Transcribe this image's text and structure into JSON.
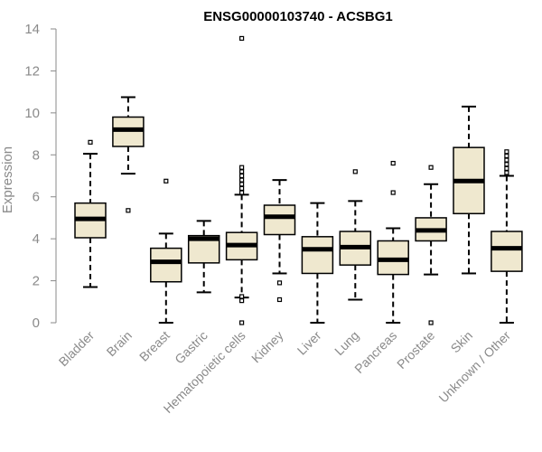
{
  "chart_data": {
    "type": "box",
    "title": "ENSG00000103740 - ACSBG1",
    "xlabel": "",
    "ylabel": "Expression",
    "ylim": [
      0,
      14
    ],
    "yticks": [
      0,
      2,
      4,
      6,
      8,
      10,
      12,
      14
    ],
    "grid": false,
    "box_fill": "#efe8cf",
    "line_color": "#000000",
    "axis_color": "#8a8a8a",
    "categories": [
      "Bladder",
      "Brain",
      "Breast",
      "Gastric",
      "Hematopoietic cells",
      "Kidney",
      "Liver",
      "Lung",
      "Pancreas",
      "Prostate",
      "Skin",
      "Unknown / Other"
    ],
    "boxes": [
      {
        "min": 1.7,
        "q1": 4.05,
        "median": 4.95,
        "q3": 5.7,
        "max": 8.05,
        "outliers": [
          8.6
        ]
      },
      {
        "min": 7.1,
        "q1": 8.4,
        "median": 9.2,
        "q3": 9.8,
        "max": 10.75,
        "outliers": [
          5.35
        ]
      },
      {
        "min": 0.0,
        "q1": 1.95,
        "median": 2.9,
        "q3": 3.55,
        "max": 4.25,
        "outliers": [
          6.75
        ]
      },
      {
        "min": 1.45,
        "q1": 2.85,
        "median": 4.0,
        "q3": 4.15,
        "max": 4.85,
        "outliers": []
      },
      {
        "min": 1.2,
        "q1": 3.0,
        "median": 3.7,
        "q3": 4.3,
        "max": 6.1,
        "outliers": [
          0.0,
          1.05,
          1.25,
          6.2,
          6.4,
          6.6,
          6.8,
          7.0,
          7.2,
          7.4,
          13.55
        ]
      },
      {
        "min": 2.35,
        "q1": 4.2,
        "median": 5.05,
        "q3": 5.6,
        "max": 6.8,
        "outliers": [
          1.9,
          1.1
        ]
      },
      {
        "min": 0.0,
        "q1": 2.35,
        "median": 3.5,
        "q3": 4.1,
        "max": 5.7,
        "outliers": []
      },
      {
        "min": 1.1,
        "q1": 2.75,
        "median": 3.6,
        "q3": 4.35,
        "max": 5.8,
        "outliers": [
          7.2
        ]
      },
      {
        "min": 0.0,
        "q1": 2.3,
        "median": 3.0,
        "q3": 3.9,
        "max": 4.5,
        "outliers": [
          6.2,
          7.6
        ]
      },
      {
        "min": 2.3,
        "q1": 3.9,
        "median": 4.4,
        "q3": 5.0,
        "max": 6.6,
        "outliers": [
          0.0,
          7.4
        ]
      },
      {
        "min": 2.35,
        "q1": 5.2,
        "median": 6.75,
        "q3": 8.35,
        "max": 10.3,
        "outliers": []
      },
      {
        "min": 0.0,
        "q1": 2.45,
        "median": 3.55,
        "q3": 4.35,
        "max": 7.0,
        "outliers": [
          7.15,
          7.35,
          7.55,
          7.75,
          7.95,
          8.15
        ]
      }
    ]
  }
}
